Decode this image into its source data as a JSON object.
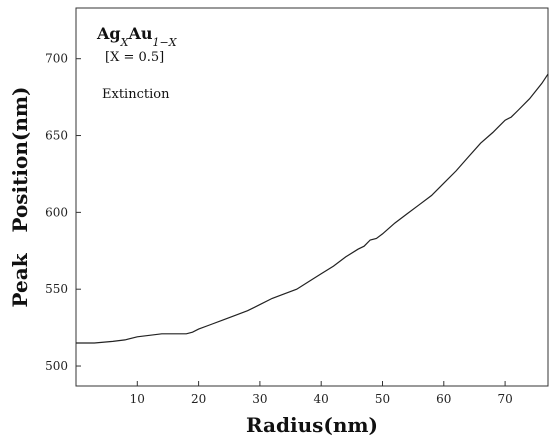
{
  "chart_data": {
    "type": "line",
    "title": "",
    "xlabel": "Radius(nm)",
    "ylabel": "Peak   Position(nm)",
    "xlim": [
      0,
      77
    ],
    "ylim": [
      487,
      733
    ],
    "x_ticks": [
      10,
      20,
      30,
      40,
      50,
      60,
      70
    ],
    "y_ticks": [
      500,
      550,
      600,
      650,
      700
    ],
    "grid": false,
    "annotations": {
      "composition_base": "Ag",
      "composition_sub1": "X",
      "composition_mid": "Au",
      "composition_sub2": "1−X",
      "x_value": "[X = 0.5]",
      "mode": "Extinction"
    },
    "series": [
      {
        "x": [
          0,
          3,
          6,
          8,
          10,
          12,
          14,
          16,
          18,
          19,
          20,
          22,
          24,
          26,
          28,
          30,
          32,
          34,
          36,
          38,
          40,
          42,
          44,
          46,
          47,
          48,
          49,
          50,
          52,
          54,
          56,
          58,
          60,
          62,
          64,
          66,
          68,
          70,
          71,
          72,
          74,
          76,
          77
        ],
        "y": [
          515,
          515,
          516,
          517,
          519,
          520,
          521,
          521,
          521,
          522,
          524,
          527,
          530,
          533,
          536,
          540,
          544,
          547,
          550,
          555,
          560,
          565,
          571,
          576,
          578,
          582,
          583,
          586,
          593,
          599,
          605,
          611,
          619,
          627,
          636,
          645,
          652,
          660,
          662,
          666,
          674,
          684,
          690
        ]
      }
    ]
  }
}
